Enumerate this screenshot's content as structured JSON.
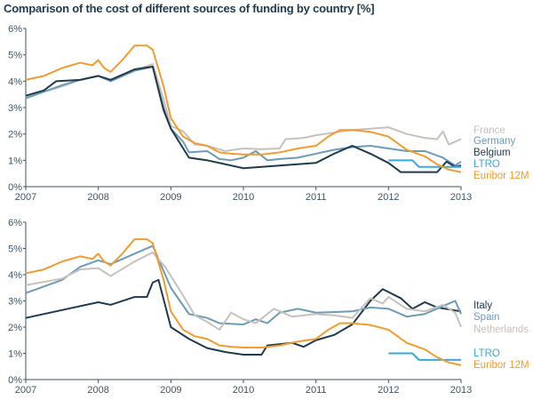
{
  "title": "Comparison of the cost of different sources of funding by country [%]",
  "chart_data": [
    {
      "type": "line",
      "xlim": [
        2007,
        2013
      ],
      "ylim": [
        0,
        6
      ],
      "x_ticks": [
        "2007",
        "2008",
        "2009",
        "2010",
        "2011",
        "2012",
        "2013"
      ],
      "y_ticks": [
        "0%",
        "1%",
        "2%",
        "3%",
        "4%",
        "5%",
        "6%"
      ],
      "grid": false,
      "legend": "right",
      "series": [
        {
          "name": "France",
          "color": "#c8c0bb",
          "points": [
            [
              2007,
              3.4
            ],
            [
              2007.5,
              3.8
            ],
            [
              2007.75,
              4.05
            ],
            [
              2008,
              4.2
            ],
            [
              2008.17,
              4.0
            ],
            [
              2008.5,
              4.4
            ],
            [
              2008.75,
              4.65
            ],
            [
              2008.9,
              3.3
            ],
            [
              2009,
              2.3
            ],
            [
              2009.17,
              2.1
            ],
            [
              2009.33,
              1.6
            ],
            [
              2009.5,
              1.55
            ],
            [
              2009.75,
              1.35
            ],
            [
              2010,
              1.45
            ],
            [
              2010.25,
              1.42
            ],
            [
              2010.5,
              1.45
            ],
            [
              2010.58,
              1.8
            ],
            [
              2010.83,
              1.85
            ],
            [
              2011,
              1.95
            ],
            [
              2011.25,
              2.05
            ],
            [
              2011.5,
              2.15
            ],
            [
              2011.75,
              2.2
            ],
            [
              2012,
              2.25
            ],
            [
              2012.25,
              2.0
            ],
            [
              2012.5,
              1.85
            ],
            [
              2012.67,
              1.8
            ],
            [
              2012.75,
              2.1
            ],
            [
              2012.83,
              1.6
            ],
            [
              2013,
              1.8
            ]
          ]
        },
        {
          "name": "Germany",
          "color": "#6a9cb8",
          "points": [
            [
              2007,
              3.35
            ],
            [
              2007.5,
              3.85
            ],
            [
              2007.75,
              4.05
            ],
            [
              2008,
              4.2
            ],
            [
              2008.17,
              4.0
            ],
            [
              2008.5,
              4.4
            ],
            [
              2008.75,
              4.55
            ],
            [
              2008.9,
              3.0
            ],
            [
              2009,
              2.2
            ],
            [
              2009.17,
              1.7
            ],
            [
              2009.25,
              1.3
            ],
            [
              2009.5,
              1.35
            ],
            [
              2009.67,
              1.05
            ],
            [
              2009.83,
              1.0
            ],
            [
              2010,
              1.1
            ],
            [
              2010.17,
              1.35
            ],
            [
              2010.33,
              1.0
            ],
            [
              2010.5,
              1.05
            ],
            [
              2010.75,
              1.1
            ],
            [
              2011,
              1.25
            ],
            [
              2011.25,
              1.4
            ],
            [
              2011.5,
              1.5
            ],
            [
              2011.75,
              1.55
            ],
            [
              2012,
              1.45
            ],
            [
              2012.25,
              1.35
            ],
            [
              2012.5,
              1.35
            ],
            [
              2012.75,
              1.1
            ],
            [
              2012.92,
              0.8
            ],
            [
              2013,
              0.95
            ]
          ]
        },
        {
          "name": "Belgium",
          "color": "#1f3a4d",
          "points": [
            [
              2007,
              3.45
            ],
            [
              2007.25,
              3.65
            ],
            [
              2007.42,
              4.0
            ],
            [
              2007.75,
              4.05
            ],
            [
              2008,
              4.2
            ],
            [
              2008.17,
              4.05
            ],
            [
              2008.5,
              4.45
            ],
            [
              2008.75,
              4.55
            ],
            [
              2008.9,
              2.9
            ],
            [
              2009,
              2.2
            ],
            [
              2009.25,
              1.1
            ],
            [
              2009.5,
              1.0
            ],
            [
              2009.75,
              0.85
            ],
            [
              2010,
              0.7
            ],
            [
              2010.25,
              0.75
            ],
            [
              2010.5,
              0.8
            ],
            [
              2010.75,
              0.85
            ],
            [
              2011,
              0.9
            ],
            [
              2011.25,
              1.25
            ],
            [
              2011.5,
              1.55
            ],
            [
              2011.75,
              1.25
            ],
            [
              2012,
              0.9
            ],
            [
              2012.17,
              0.55
            ],
            [
              2012.5,
              0.55
            ],
            [
              2012.67,
              0.55
            ],
            [
              2012.8,
              0.95
            ],
            [
              2012.92,
              0.75
            ],
            [
              2013,
              0.8
            ]
          ]
        },
        {
          "name": "LTRO",
          "color": "#3aa8dc",
          "points": [
            [
              2012,
              1.0
            ],
            [
              2012.33,
              1.0
            ],
            [
              2012.42,
              0.75
            ],
            [
              2013,
              0.75
            ]
          ]
        },
        {
          "name": "Euribor 12M",
          "color": "#f39b2e",
          "points": [
            [
              2007,
              4.05
            ],
            [
              2007.25,
              4.2
            ],
            [
              2007.5,
              4.5
            ],
            [
              2007.75,
              4.7
            ],
            [
              2007.92,
              4.6
            ],
            [
              2008,
              4.8
            ],
            [
              2008.08,
              4.5
            ],
            [
              2008.17,
              4.35
            ],
            [
              2008.33,
              4.8
            ],
            [
              2008.5,
              5.35
            ],
            [
              2008.67,
              5.35
            ],
            [
              2008.75,
              5.2
            ],
            [
              2008.9,
              3.8
            ],
            [
              2009,
              2.6
            ],
            [
              2009.17,
              1.9
            ],
            [
              2009.33,
              1.65
            ],
            [
              2009.5,
              1.55
            ],
            [
              2009.67,
              1.3
            ],
            [
              2009.83,
              1.25
            ],
            [
              2010,
              1.22
            ],
            [
              2010.25,
              1.22
            ],
            [
              2010.5,
              1.3
            ],
            [
              2010.75,
              1.45
            ],
            [
              2011,
              1.55
            ],
            [
              2011.17,
              1.9
            ],
            [
              2011.33,
              2.15
            ],
            [
              2011.5,
              2.15
            ],
            [
              2011.75,
              2.08
            ],
            [
              2012,
              1.9
            ],
            [
              2012.25,
              1.4
            ],
            [
              2012.5,
              1.15
            ],
            [
              2012.67,
              0.85
            ],
            [
              2012.83,
              0.65
            ],
            [
              2013,
              0.55
            ]
          ]
        }
      ]
    },
    {
      "type": "line",
      "xlim": [
        2007,
        2013
      ],
      "ylim": [
        0,
        6
      ],
      "x_ticks": [
        "2007",
        "2008",
        "2009",
        "2010",
        "2011",
        "2012",
        "2013"
      ],
      "y_ticks": [
        "0%",
        "1%",
        "2%",
        "3%",
        "4%",
        "5%",
        "6%"
      ],
      "grid": false,
      "legend": "right",
      "series": [
        {
          "name": "Italy",
          "color": "#1f3a4d",
          "points": [
            [
              2007,
              2.35
            ],
            [
              2007.5,
              2.65
            ],
            [
              2008,
              2.95
            ],
            [
              2008.17,
              2.85
            ],
            [
              2008.5,
              3.15
            ],
            [
              2008.67,
              3.15
            ],
            [
              2008.75,
              3.7
            ],
            [
              2008.83,
              3.8
            ],
            [
              2009,
              2.0
            ],
            [
              2009.25,
              1.55
            ],
            [
              2009.5,
              1.2
            ],
            [
              2009.75,
              1.05
            ],
            [
              2010,
              0.95
            ],
            [
              2010.25,
              0.95
            ],
            [
              2010.33,
              1.3
            ],
            [
              2010.67,
              1.4
            ],
            [
              2010.83,
              1.25
            ],
            [
              2011,
              1.5
            ],
            [
              2011.25,
              1.7
            ],
            [
              2011.5,
              2.1
            ],
            [
              2011.75,
              3.0
            ],
            [
              2011.92,
              3.45
            ],
            [
              2012.17,
              3.1
            ],
            [
              2012.33,
              2.7
            ],
            [
              2012.5,
              2.95
            ],
            [
              2012.67,
              2.75
            ],
            [
              2013,
              2.6
            ]
          ]
        },
        {
          "name": "Spain",
          "color": "#6a9cb8",
          "points": [
            [
              2007,
              3.3
            ],
            [
              2007.5,
              3.8
            ],
            [
              2007.75,
              4.3
            ],
            [
              2008,
              4.55
            ],
            [
              2008.17,
              4.4
            ],
            [
              2008.5,
              4.8
            ],
            [
              2008.75,
              5.1
            ],
            [
              2009,
              3.5
            ],
            [
              2009.25,
              2.5
            ],
            [
              2009.5,
              2.35
            ],
            [
              2009.67,
              2.15
            ],
            [
              2010,
              2.1
            ],
            [
              2010.17,
              2.3
            ],
            [
              2010.33,
              2.15
            ],
            [
              2010.5,
              2.55
            ],
            [
              2010.75,
              2.7
            ],
            [
              2011,
              2.55
            ],
            [
              2011.5,
              2.6
            ],
            [
              2011.75,
              2.75
            ],
            [
              2012,
              2.7
            ],
            [
              2012.25,
              2.4
            ],
            [
              2012.5,
              2.5
            ],
            [
              2012.75,
              2.8
            ],
            [
              2012.92,
              3.0
            ],
            [
              2013,
              2.5
            ]
          ]
        },
        {
          "name": "Netherlands",
          "color": "#c8c0bb",
          "points": [
            [
              2007,
              3.6
            ],
            [
              2007.5,
              3.85
            ],
            [
              2007.75,
              4.2
            ],
            [
              2008,
              4.25
            ],
            [
              2008.17,
              3.95
            ],
            [
              2008.5,
              4.5
            ],
            [
              2008.75,
              4.85
            ],
            [
              2008.92,
              4.3
            ],
            [
              2009.17,
              3.2
            ],
            [
              2009.33,
              2.45
            ],
            [
              2009.5,
              2.2
            ],
            [
              2009.67,
              1.9
            ],
            [
              2009.83,
              2.55
            ],
            [
              2010,
              2.3
            ],
            [
              2010.17,
              2.15
            ],
            [
              2010.42,
              2.7
            ],
            [
              2010.67,
              2.4
            ],
            [
              2011,
              2.5
            ],
            [
              2011.25,
              2.45
            ],
            [
              2011.5,
              2.35
            ],
            [
              2011.75,
              3.1
            ],
            [
              2011.92,
              2.9
            ],
            [
              2012,
              3.15
            ],
            [
              2012.25,
              2.7
            ],
            [
              2012.5,
              2.6
            ],
            [
              2012.75,
              2.85
            ],
            [
              2012.92,
              2.55
            ],
            [
              2013,
              2.0
            ]
          ]
        },
        {
          "name": "LTRO",
          "color": "#3aa8dc",
          "points": [
            [
              2012,
              1.0
            ],
            [
              2012.33,
              1.0
            ],
            [
              2012.42,
              0.75
            ],
            [
              2013,
              0.75
            ]
          ]
        },
        {
          "name": "Euribor 12M",
          "color": "#f39b2e",
          "points": [
            [
              2007,
              4.05
            ],
            [
              2007.25,
              4.2
            ],
            [
              2007.5,
              4.5
            ],
            [
              2007.75,
              4.7
            ],
            [
              2007.92,
              4.6
            ],
            [
              2008,
              4.8
            ],
            [
              2008.08,
              4.5
            ],
            [
              2008.17,
              4.35
            ],
            [
              2008.33,
              4.8
            ],
            [
              2008.5,
              5.35
            ],
            [
              2008.67,
              5.35
            ],
            [
              2008.75,
              5.2
            ],
            [
              2008.9,
              3.8
            ],
            [
              2009,
              2.6
            ],
            [
              2009.17,
              1.9
            ],
            [
              2009.33,
              1.65
            ],
            [
              2009.5,
              1.55
            ],
            [
              2009.67,
              1.3
            ],
            [
              2009.83,
              1.25
            ],
            [
              2010,
              1.22
            ],
            [
              2010.25,
              1.22
            ],
            [
              2010.5,
              1.3
            ],
            [
              2010.75,
              1.45
            ],
            [
              2011,
              1.55
            ],
            [
              2011.17,
              1.9
            ],
            [
              2011.33,
              2.15
            ],
            [
              2011.5,
              2.15
            ],
            [
              2011.75,
              2.08
            ],
            [
              2012,
              1.9
            ],
            [
              2012.25,
              1.4
            ],
            [
              2012.5,
              1.15
            ],
            [
              2012.67,
              0.85
            ],
            [
              2012.83,
              0.65
            ],
            [
              2013,
              0.55
            ]
          ]
        }
      ]
    }
  ]
}
